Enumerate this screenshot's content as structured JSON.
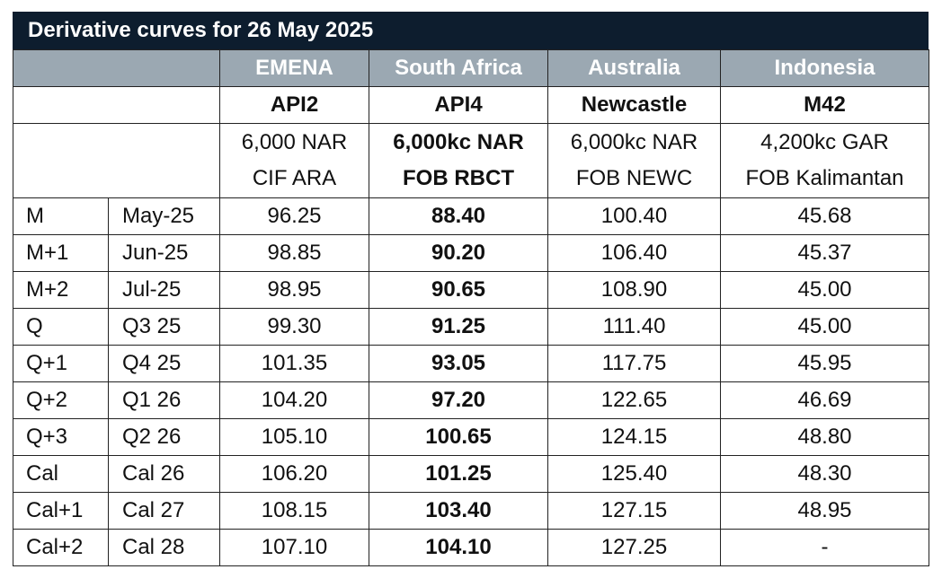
{
  "title": "Derivative curves for 26 May 2025",
  "regions": [
    "EMENA",
    "South Africa",
    "Australia",
    "Indonesia"
  ],
  "indices": [
    "API2",
    "API4",
    "Newcastle",
    "M42"
  ],
  "specs": [
    {
      "line1": "6,000 NAR",
      "line2": "CIF ARA"
    },
    {
      "line1": "6,000kc NAR",
      "line2": "FOB RBCT"
    },
    {
      "line1": "6,000kc NAR",
      "line2": "FOB NEWC"
    },
    {
      "line1": "4,200kc GAR",
      "line2": "FOB Kalimantan"
    }
  ],
  "rows": [
    {
      "code": "M",
      "period": "May-25",
      "api2": "96.25",
      "api4": "88.40",
      "newc": "100.40",
      "m42": "45.68"
    },
    {
      "code": "M+1",
      "period": "Jun-25",
      "api2": "98.85",
      "api4": "90.20",
      "newc": "106.40",
      "m42": "45.37"
    },
    {
      "code": "M+2",
      "period": "Jul-25",
      "api2": "98.95",
      "api4": "90.65",
      "newc": "108.90",
      "m42": "45.00"
    },
    {
      "code": "Q",
      "period": "Q3 25",
      "api2": "99.30",
      "api4": "91.25",
      "newc": "111.40",
      "m42": "45.00"
    },
    {
      "code": "Q+1",
      "period": "Q4 25",
      "api2": "101.35",
      "api4": "93.05",
      "newc": "117.75",
      "m42": "45.95"
    },
    {
      "code": "Q+2",
      "period": "Q1 26",
      "api2": "104.20",
      "api4": "97.20",
      "newc": "122.65",
      "m42": "46.69"
    },
    {
      "code": "Q+3",
      "period": "Q2 26",
      "api2": "105.10",
      "api4": "100.65",
      "newc": "124.15",
      "m42": "48.80"
    },
    {
      "code": "Cal",
      "period": "Cal 26",
      "api2": "106.20",
      "api4": "101.25",
      "newc": "125.40",
      "m42": "48.30"
    },
    {
      "code": "Cal+1",
      "period": "Cal 27",
      "api2": "108.15",
      "api4": "103.40",
      "newc": "127.15",
      "m42": "48.95"
    },
    {
      "code": "Cal+2",
      "period": "Cal 28",
      "api2": "107.10",
      "api4": "104.10",
      "newc": "127.25",
      "m42": "-"
    }
  ]
}
